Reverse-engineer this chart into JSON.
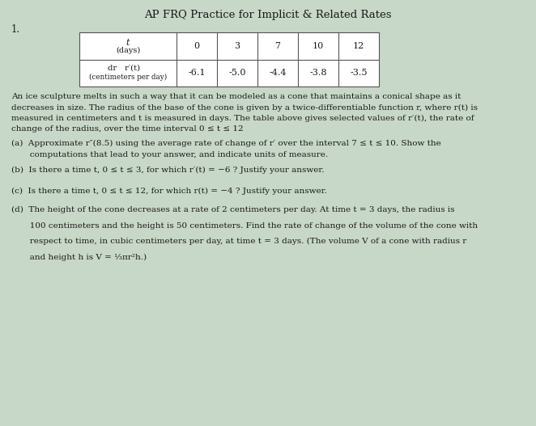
{
  "title": "AP FRQ Practice for Implicit & Related Rates",
  "title_fontsize": 9.5,
  "background_color": "#c8d8c8",
  "text_color": "#1a1a1a",
  "number_label": "1.",
  "table": {
    "col_headers": [
      "0",
      "3",
      "7",
      "10",
      "12"
    ],
    "values": [
      "-6.1",
      "-5.0",
      "-4.4",
      "-3.8",
      "-3.5"
    ]
  },
  "paragraph_lines": [
    "An ice sculpture melts in such a way that it can be modeled as a cone that maintains a conical shape as it",
    "decreases in size. The radius of the base of the cone is given by a twice-differentiable function r, where r(t) is",
    "measured in centimeters and t is measured in days. The table above gives selected values of r′(t), the rate of",
    "change of the radius, over the time interval 0 ≤ t ≤ 12"
  ],
  "part_a_lines": [
    "(a)  Approximate r″(8.5) using the average rate of change of r′ over the interval 7 ≤ t ≤ 10. Show the",
    "       computations that lead to your answer, and indicate units of measure."
  ],
  "part_b": "(b)  Is there a time t, 0 ≤ t ≤ 3, for which r′(t) = −6 ? Justify your answer.",
  "part_c": "(c)  Is there a time t, 0 ≤ t ≤ 12, for which r(t) = −4 ? Justify your answer.",
  "part_d_lines": [
    "(d)  The height of the cone decreases at a rate of 2 centimeters per day. At time t = 3 days, the radius is",
    "",
    "       100 centimeters and the height is 50 centimeters. Find the rate of change of the volume of the cone with",
    "",
    "       respect to time, in cubic centimeters per day, at time t = 3 days. (The volume V of a cone with radius r",
    "",
    "       and height h is V = ¹⁄₃πr²h.)"
  ],
  "body_fontsize": 7.5,
  "small_fontsize": 6.8,
  "table_fontsize": 8.0
}
